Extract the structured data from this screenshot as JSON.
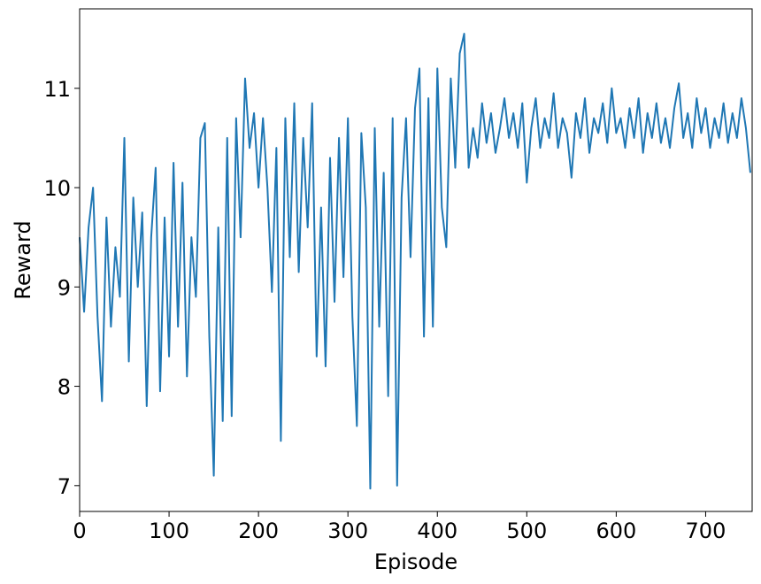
{
  "chart_data": {
    "type": "line",
    "x_label": "Episode",
    "y_label": "Reward",
    "x": [
      0,
      5,
      10,
      15,
      20,
      25,
      30,
      35,
      40,
      45,
      50,
      55,
      60,
      65,
      70,
      75,
      80,
      85,
      90,
      95,
      100,
      105,
      110,
      115,
      120,
      125,
      130,
      135,
      140,
      145,
      150,
      155,
      160,
      165,
      170,
      175,
      180,
      185,
      190,
      195,
      200,
      205,
      210,
      215,
      220,
      225,
      230,
      235,
      240,
      245,
      250,
      255,
      260,
      265,
      270,
      275,
      280,
      285,
      290,
      295,
      300,
      305,
      310,
      315,
      320,
      325,
      330,
      335,
      340,
      345,
      350,
      355,
      360,
      365,
      370,
      375,
      380,
      385,
      390,
      395,
      400,
      405,
      410,
      415,
      420,
      425,
      430,
      435,
      440,
      445,
      450,
      455,
      460,
      465,
      470,
      475,
      480,
      485,
      490,
      495,
      500,
      505,
      510,
      515,
      520,
      525,
      530,
      535,
      540,
      545,
      550,
      555,
      560,
      565,
      570,
      575,
      580,
      585,
      590,
      595,
      600,
      605,
      610,
      615,
      620,
      625,
      630,
      635,
      640,
      645,
      650,
      655,
      660,
      665,
      670,
      675,
      680,
      685,
      690,
      695,
      700,
      705,
      710,
      715,
      720,
      725,
      730,
      735,
      740,
      745,
      750
    ],
    "series": [
      {
        "color": "#1f77b4",
        "values": [
          9.5,
          8.75,
          9.6,
          10.0,
          8.7,
          7.85,
          9.7,
          8.6,
          9.4,
          8.9,
          10.5,
          8.25,
          9.9,
          9.0,
          9.75,
          7.8,
          9.5,
          10.2,
          7.95,
          9.7,
          8.3,
          10.25,
          8.6,
          10.05,
          8.1,
          9.5,
          8.9,
          10.5,
          10.65,
          8.5,
          7.1,
          9.6,
          7.65,
          10.5,
          7.7,
          10.7,
          9.5,
          11.1,
          10.4,
          10.75,
          10.0,
          10.7,
          10.0,
          8.95,
          10.4,
          7.45,
          10.7,
          9.3,
          10.85,
          9.15,
          10.5,
          9.6,
          10.85,
          8.3,
          9.8,
          8.2,
          10.3,
          8.85,
          10.5,
          9.1,
          10.7,
          8.7,
          7.6,
          10.55,
          9.8,
          6.97,
          10.6,
          8.6,
          10.15,
          7.9,
          10.7,
          7.0,
          9.9,
          10.7,
          9.3,
          10.8,
          11.2,
          8.5,
          10.9,
          8.6,
          11.2,
          9.8,
          9.4,
          11.1,
          10.2,
          11.35,
          11.55,
          10.2,
          10.6,
          10.3,
          10.85,
          10.45,
          10.75,
          10.35,
          10.6,
          10.9,
          10.5,
          10.75,
          10.4,
          10.85,
          10.05,
          10.6,
          10.9,
          10.4,
          10.7,
          10.5,
          10.95,
          10.4,
          10.7,
          10.55,
          10.1,
          10.75,
          10.5,
          10.9,
          10.35,
          10.7,
          10.55,
          10.85,
          10.45,
          11.0,
          10.55,
          10.7,
          10.4,
          10.8,
          10.5,
          10.9,
          10.35,
          10.75,
          10.5,
          10.85,
          10.45,
          10.7,
          10.4,
          10.8,
          11.05,
          10.5,
          10.75,
          10.4,
          10.9,
          10.55,
          10.8,
          10.4,
          10.7,
          10.5,
          10.85,
          10.45,
          10.75,
          10.5,
          10.9,
          10.6,
          10.15
        ]
      }
    ],
    "xlim": [
      0,
      752
    ],
    "ylim": [
      6.74,
      11.8
    ],
    "xticks": [
      0,
      100,
      200,
      300,
      400,
      500,
      600,
      700
    ],
    "yticks": [
      7,
      8,
      9,
      10,
      11
    ]
  }
}
